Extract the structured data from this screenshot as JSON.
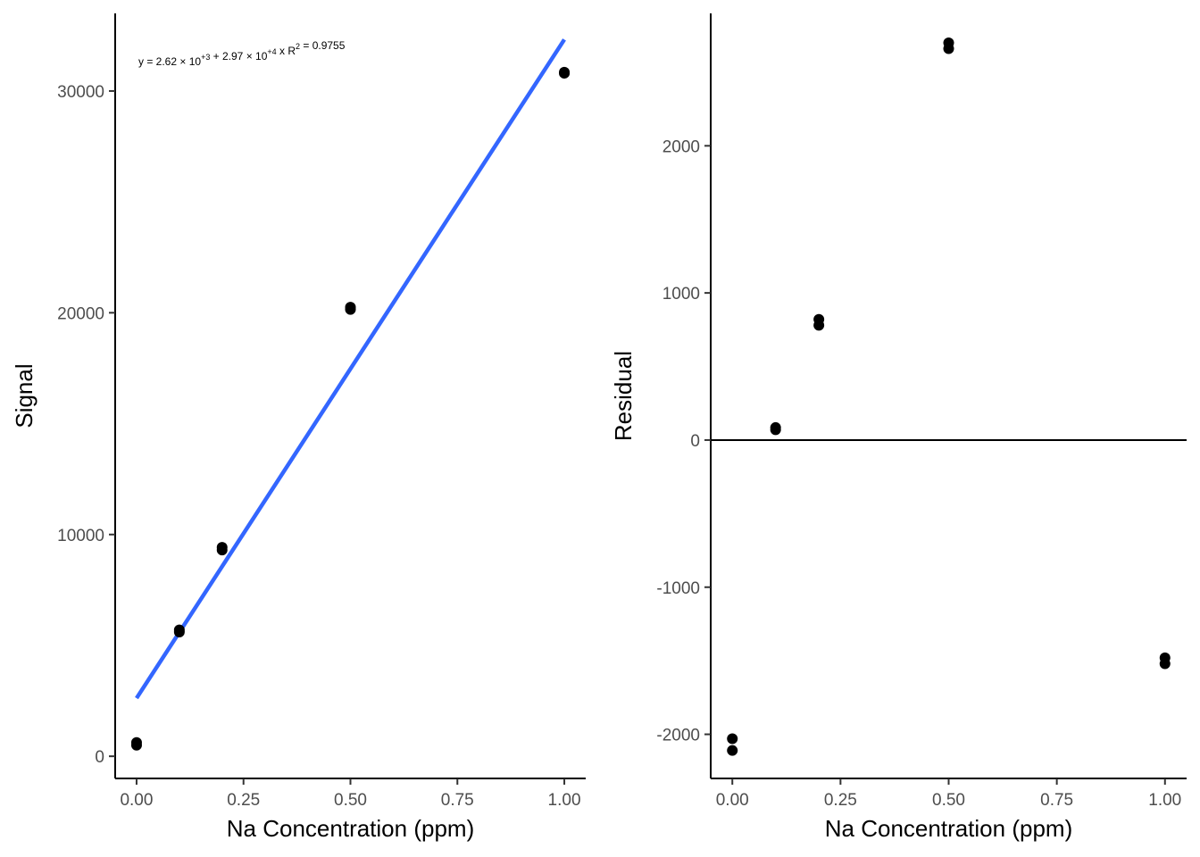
{
  "chart_data": [
    {
      "type": "scatter",
      "title": "",
      "xlabel": "Na Concentration (ppm)",
      "ylabel": "Signal",
      "xlim": [
        -0.05,
        1.05
      ],
      "ylim": [
        -1000,
        33500
      ],
      "xticks": [
        0,
        0.25,
        0.5,
        0.75,
        1
      ],
      "xtick_labels": [
        "0.00",
        "0.25",
        "0.50",
        "0.75",
        "1.00"
      ],
      "yticks": [
        0,
        10000,
        20000,
        30000
      ],
      "ytick_labels": [
        "0",
        "10000",
        "20000",
        "30000"
      ],
      "grid": false,
      "points": [
        {
          "x": 0.0,
          "y": 500
        },
        {
          "x": 0.0,
          "y": 620
        },
        {
          "x": 0.1,
          "y": 5600
        },
        {
          "x": 0.1,
          "y": 5700
        },
        {
          "x": 0.2,
          "y": 9300
        },
        {
          "x": 0.2,
          "y": 9420
        },
        {
          "x": 0.5,
          "y": 20150
        },
        {
          "x": 0.5,
          "y": 20250
        },
        {
          "x": 1.0,
          "y": 30800
        },
        {
          "x": 1.0,
          "y": 30850
        }
      ],
      "fit_line": {
        "intercept": 2620,
        "slope": 29700,
        "x_range": [
          0,
          1
        ],
        "color": "#3366ff"
      },
      "equation": {
        "prefix": "y = 2.62 × 10",
        "exp1": "+3",
        "mid": " + 2.97 × 10",
        "exp2": "+4",
        "suffix": " x",
        "r2_prefix": "R",
        "r2_exp": "2",
        "r2_suffix": " = 0.9755"
      }
    },
    {
      "type": "scatter",
      "title": "",
      "xlabel": "Na Concentration (ppm)",
      "ylabel": "Residual",
      "xlim": [
        -0.05,
        1.05
      ],
      "ylim": [
        -2300,
        2900
      ],
      "xticks": [
        0,
        0.25,
        0.5,
        0.75,
        1
      ],
      "xtick_labels": [
        "0.00",
        "0.25",
        "0.50",
        "0.75",
        "1.00"
      ],
      "yticks": [
        -2000,
        -1000,
        0,
        1000,
        2000
      ],
      "ytick_labels": [
        "-2000",
        "-1000",
        "0",
        "1000",
        "2000"
      ],
      "grid": false,
      "reference_line_y": 0,
      "points": [
        {
          "x": 0.0,
          "y": -2030
        },
        {
          "x": 0.0,
          "y": -2110
        },
        {
          "x": 0.1,
          "y": 70
        },
        {
          "x": 0.1,
          "y": 85
        },
        {
          "x": 0.2,
          "y": 780
        },
        {
          "x": 0.2,
          "y": 820
        },
        {
          "x": 0.5,
          "y": 2700
        },
        {
          "x": 0.5,
          "y": 2660
        },
        {
          "x": 1.0,
          "y": -1480
        },
        {
          "x": 1.0,
          "y": -1520
        }
      ]
    }
  ]
}
